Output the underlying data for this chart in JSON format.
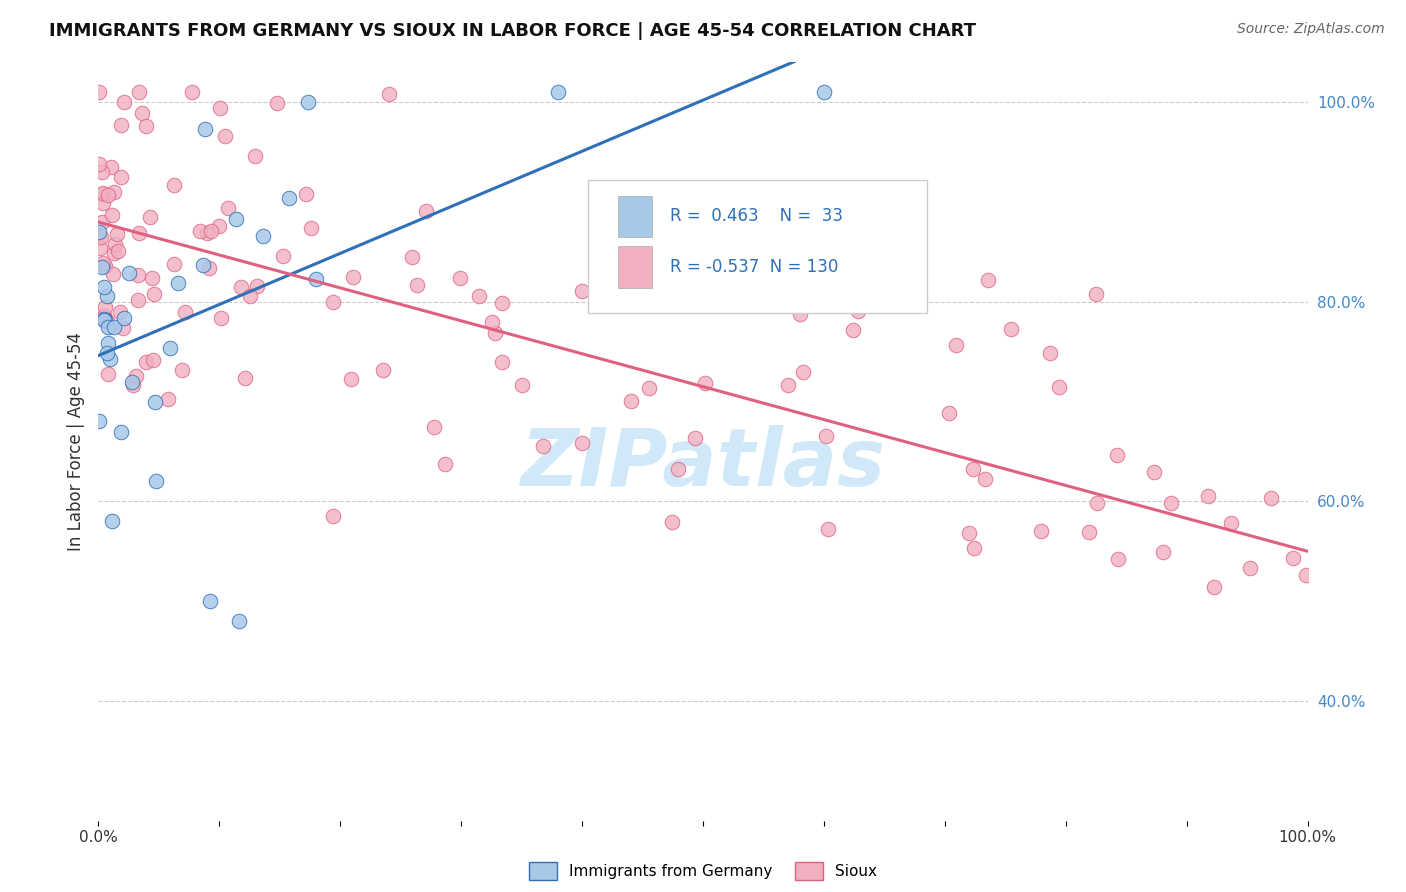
{
  "title": "IMMIGRANTS FROM GERMANY VS SIOUX IN LABOR FORCE | AGE 45-54 CORRELATION CHART",
  "source_text": "Source: ZipAtlas.com",
  "ylabel": "In Labor Force | Age 45-54",
  "r_germany": 0.463,
  "n_germany": 33,
  "r_sioux": -0.537,
  "n_sioux": 130,
  "color_germany": "#a8c8e8",
  "color_sioux": "#f0b0c0",
  "line_color_germany": "#3070b8",
  "line_color_sioux": "#e06080",
  "legend_text_color": "#3070b8",
  "watermark_color": "#d0e8f8",
  "background_color": "#ffffff",
  "grid_color": "#cccccc",
  "right_tick_color": "#4488cc",
  "xlim": [
    0.0,
    1.0
  ],
  "ylim": [
    0.28,
    1.04
  ],
  "ytick_positions": [
    0.4,
    0.6,
    0.8,
    1.0
  ],
  "ytick_labels": [
    "40.0%",
    "60.0%",
    "80.0%",
    "100.0%"
  ]
}
